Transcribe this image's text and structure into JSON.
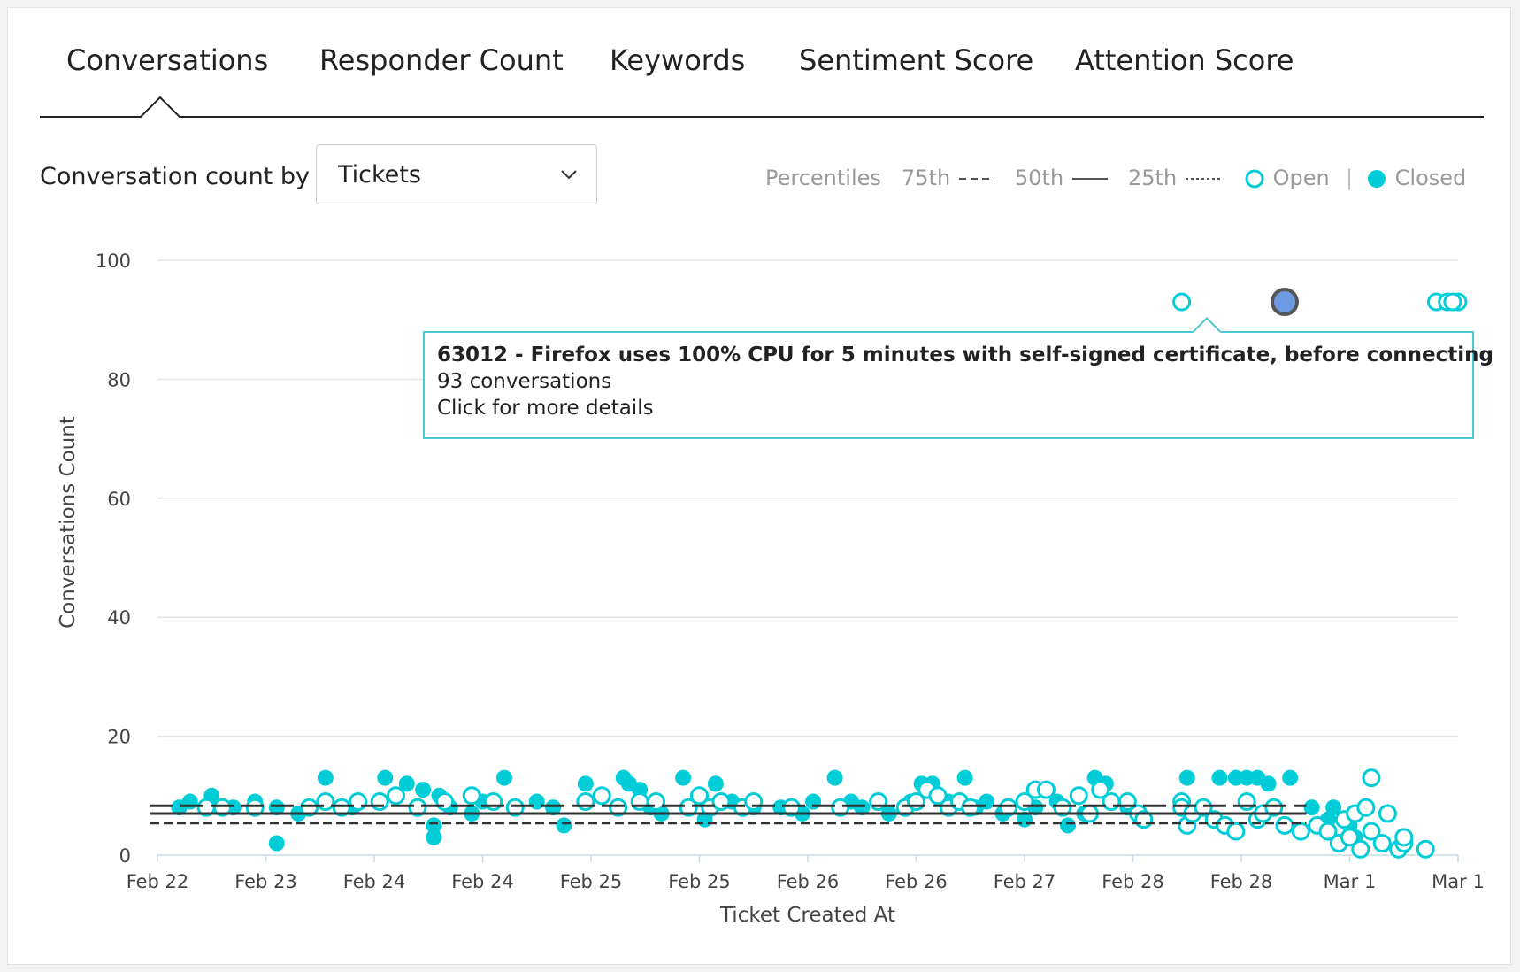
{
  "tabs": [
    {
      "label": "Conversations",
      "active": true
    },
    {
      "label": "Responder Count",
      "active": false
    },
    {
      "label": "Keywords",
      "active": false
    },
    {
      "label": "Sentiment Score",
      "active": false
    },
    {
      "label": "Attention Score",
      "active": false
    }
  ],
  "controls": {
    "label": "Conversation count by",
    "select_value": "Tickets"
  },
  "legend": {
    "percentiles_label": "Percentiles",
    "p75": "75th",
    "p50": "50th",
    "p25": "25th",
    "open": "Open",
    "closed": "Closed"
  },
  "colors": {
    "accent": "#00cdd8",
    "highlight": "#6d9ae0",
    "percentile_line": "#333333"
  },
  "tooltip": {
    "title": "63012 - Firefox uses 100% CPU for 5 minutes with self-signed certificate, before connecting",
    "count": "93 conversations",
    "hint": "Click for more details"
  },
  "chart_data": {
    "type": "scatter",
    "xlabel": "Ticket Created At",
    "ylabel": "Conversations Count",
    "ylim": [
      0,
      100
    ],
    "yticks": [
      0,
      20,
      40,
      60,
      80,
      100
    ],
    "xticks": [
      "Feb 22",
      "Feb 23",
      "Feb 24",
      "Feb 24",
      "Feb 25",
      "Feb 25",
      "Feb 26",
      "Feb 26",
      "Feb 27",
      "Feb 28",
      "Feb 28",
      "Mar 1",
      "Mar 1"
    ],
    "xlim": [
      0,
      12
    ],
    "grid": true,
    "percentiles": {
      "p75": 8.3,
      "p50": 7.0,
      "p25": 5.4
    },
    "highlighted": {
      "x": 10.4,
      "y": 93,
      "status": "closed"
    },
    "series": [
      {
        "name": "Open",
        "points": [
          [
            0.45,
            8
          ],
          [
            0.6,
            8
          ],
          [
            0.9,
            8
          ],
          [
            1.4,
            8
          ],
          [
            1.55,
            9
          ],
          [
            1.7,
            8
          ],
          [
            1.85,
            9
          ],
          [
            2.05,
            9
          ],
          [
            2.2,
            10
          ],
          [
            2.4,
            8
          ],
          [
            2.65,
            9
          ],
          [
            2.9,
            10
          ],
          [
            3.1,
            9
          ],
          [
            3.3,
            8
          ],
          [
            3.95,
            9
          ],
          [
            4.1,
            10
          ],
          [
            4.25,
            8
          ],
          [
            4.45,
            9
          ],
          [
            4.6,
            9
          ],
          [
            4.9,
            8
          ],
          [
            5.0,
            10
          ],
          [
            5.1,
            8
          ],
          [
            5.2,
            9
          ],
          [
            5.4,
            8
          ],
          [
            5.5,
            9
          ],
          [
            5.85,
            8
          ],
          [
            6.3,
            8
          ],
          [
            6.65,
            9
          ],
          [
            6.9,
            8
          ],
          [
            7.0,
            9
          ],
          [
            7.1,
            11
          ],
          [
            7.2,
            10
          ],
          [
            7.3,
            8
          ],
          [
            7.4,
            9
          ],
          [
            7.5,
            8
          ],
          [
            7.85,
            8
          ],
          [
            8.0,
            9
          ],
          [
            8.1,
            11
          ],
          [
            8.2,
            11
          ],
          [
            8.35,
            8
          ],
          [
            8.5,
            10
          ],
          [
            8.6,
            7
          ],
          [
            8.7,
            11
          ],
          [
            8.8,
            9
          ],
          [
            8.95,
            9
          ],
          [
            9.05,
            7
          ],
          [
            9.1,
            6
          ],
          [
            9.45,
            93
          ],
          [
            9.45,
            9
          ],
          [
            9.45,
            8
          ],
          [
            9.5,
            5
          ],
          [
            9.55,
            7
          ],
          [
            9.65,
            8
          ],
          [
            9.75,
            6
          ],
          [
            9.85,
            5
          ],
          [
            9.95,
            4
          ],
          [
            10.05,
            9
          ],
          [
            10.15,
            6
          ],
          [
            10.2,
            7
          ],
          [
            10.3,
            8
          ],
          [
            10.4,
            5
          ],
          [
            10.55,
            4
          ],
          [
            10.7,
            5
          ],
          [
            10.8,
            4
          ],
          [
            10.9,
            2
          ],
          [
            11.0,
            3
          ],
          [
            11.1,
            1
          ],
          [
            11.2,
            4
          ],
          [
            11.3,
            2
          ],
          [
            11.45,
            1
          ],
          [
            11.5,
            2
          ],
          [
            11.7,
            1
          ],
          [
            10.95,
            6
          ],
          [
            11.05,
            7
          ],
          [
            11.15,
            8
          ],
          [
            11.2,
            13
          ],
          [
            11.35,
            7
          ],
          [
            11.5,
            3
          ],
          [
            11.8,
            93
          ],
          [
            11.9,
            93
          ],
          [
            12.0,
            93
          ],
          [
            11.95,
            93
          ]
        ]
      },
      {
        "name": "Closed",
        "points": [
          [
            0.2,
            8
          ],
          [
            0.3,
            9
          ],
          [
            0.5,
            10
          ],
          [
            0.7,
            8
          ],
          [
            0.9,
            9
          ],
          [
            1.1,
            8
          ],
          [
            1.3,
            7
          ],
          [
            1.55,
            13
          ],
          [
            1.8,
            8
          ],
          [
            2.1,
            13
          ],
          [
            2.3,
            12
          ],
          [
            2.45,
            11
          ],
          [
            2.6,
            10
          ],
          [
            2.55,
            5
          ],
          [
            2.55,
            3
          ],
          [
            2.7,
            8
          ],
          [
            2.9,
            7
          ],
          [
            3.0,
            9
          ],
          [
            3.2,
            13
          ],
          [
            3.5,
            9
          ],
          [
            3.65,
            8
          ],
          [
            3.75,
            5
          ],
          [
            3.95,
            12
          ],
          [
            4.3,
            13
          ],
          [
            4.35,
            12
          ],
          [
            4.45,
            11
          ],
          [
            4.55,
            8
          ],
          [
            4.65,
            7
          ],
          [
            4.85,
            13
          ],
          [
            5.05,
            6
          ],
          [
            5.15,
            12
          ],
          [
            5.3,
            9
          ],
          [
            5.5,
            8
          ],
          [
            5.75,
            8
          ],
          [
            5.95,
            7
          ],
          [
            6.05,
            9
          ],
          [
            6.25,
            13
          ],
          [
            6.4,
            9
          ],
          [
            6.5,
            8
          ],
          [
            6.75,
            7
          ],
          [
            6.95,
            9
          ],
          [
            7.05,
            12
          ],
          [
            7.15,
            12
          ],
          [
            7.3,
            9
          ],
          [
            7.45,
            13
          ],
          [
            7.55,
            8
          ],
          [
            7.65,
            9
          ],
          [
            7.8,
            7
          ],
          [
            8.0,
            6
          ],
          [
            8.1,
            8
          ],
          [
            8.3,
            9
          ],
          [
            8.4,
            5
          ],
          [
            8.55,
            7
          ],
          [
            8.65,
            13
          ],
          [
            8.75,
            12
          ],
          [
            8.95,
            8
          ],
          [
            1.1,
            2
          ],
          [
            9.5,
            13
          ],
          [
            9.8,
            13
          ],
          [
            9.95,
            13
          ],
          [
            10.05,
            13
          ],
          [
            10.15,
            13
          ],
          [
            10.25,
            12
          ],
          [
            10.45,
            13
          ],
          [
            10.65,
            8
          ],
          [
            10.85,
            8
          ],
          [
            10.8,
            6
          ],
          [
            11.0,
            5
          ],
          [
            11.05,
            3
          ]
        ]
      }
    ]
  }
}
